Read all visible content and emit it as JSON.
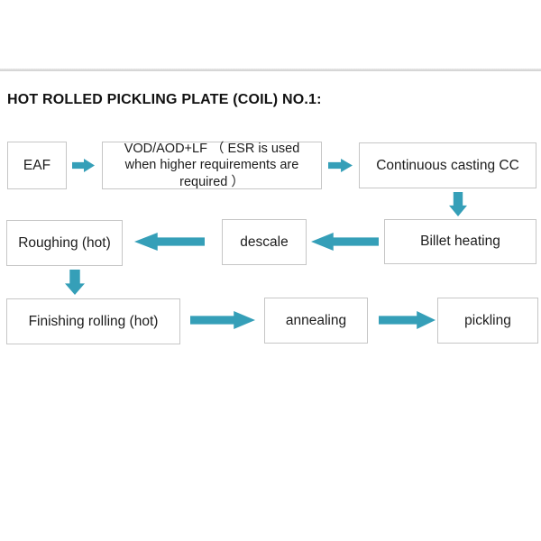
{
  "page": {
    "title": "HOT ROLLED PICKLING PLATE (COIL) NO.1:"
  },
  "colors": {
    "arrow": "#359fb8",
    "box_border": "#c6c6c6",
    "divider": "#d4d4d4",
    "text": "#1c1c1c",
    "title_text": "#111111",
    "background": "#ffffff"
  },
  "flowchart": {
    "nodes": [
      {
        "id": "eaf",
        "label": "EAF"
      },
      {
        "id": "vod",
        "label": "VOD/AOD+LF （ ESR is used when higher requirements are required ）"
      },
      {
        "id": "cc",
        "label": "Continuous casting CC"
      },
      {
        "id": "billet",
        "label": "Billet heating"
      },
      {
        "id": "descale",
        "label": "descale"
      },
      {
        "id": "roughing",
        "label": "Roughing (hot)"
      },
      {
        "id": "finishing",
        "label": "Finishing rolling (hot)"
      },
      {
        "id": "annealing",
        "label": "annealing"
      },
      {
        "id": "pickling",
        "label": "pickling"
      }
    ],
    "edges": [
      {
        "from": "eaf",
        "to": "vod",
        "direction": "right"
      },
      {
        "from": "vod",
        "to": "cc",
        "direction": "right"
      },
      {
        "from": "cc",
        "to": "billet",
        "direction": "down"
      },
      {
        "from": "billet",
        "to": "descale",
        "direction": "left"
      },
      {
        "from": "descale",
        "to": "roughing",
        "direction": "left"
      },
      {
        "from": "roughing",
        "to": "finishing",
        "direction": "down"
      },
      {
        "from": "finishing",
        "to": "annealing",
        "direction": "right"
      },
      {
        "from": "annealing",
        "to": "pickling",
        "direction": "right"
      }
    ]
  }
}
